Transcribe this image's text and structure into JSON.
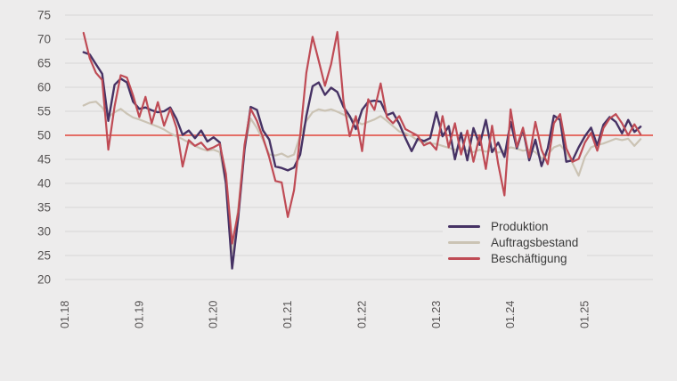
{
  "page": {
    "background_color": "#edecec",
    "gridline_color": "#d8d6d6",
    "axis_label_color": "#565353"
  },
  "chart_data": {
    "type": "line",
    "title": "",
    "xlabel": "",
    "ylabel": "",
    "ylim": [
      20,
      75
    ],
    "grid": true,
    "y_ticks": [
      20,
      25,
      30,
      35,
      40,
      45,
      50,
      55,
      60,
      65,
      70,
      75
    ],
    "x_tick_labels": [
      "01.18",
      "01.19",
      "01.20",
      "01.21",
      "01.22",
      "01.23",
      "01.24",
      "01.25"
    ],
    "x_start_month_index": 3,
    "x_months": [
      "04.18",
      "05.18",
      "06.18",
      "07.18",
      "08.18",
      "09.18",
      "10.18",
      "11.18",
      "12.18",
      "01.19",
      "02.19",
      "03.19",
      "04.19",
      "05.19",
      "06.19",
      "07.19",
      "08.19",
      "09.19",
      "10.19",
      "11.19",
      "12.19",
      "01.20",
      "02.20",
      "03.20",
      "04.20",
      "05.20",
      "06.20",
      "07.20",
      "08.20",
      "09.20",
      "10.20",
      "11.20",
      "12.20",
      "01.21",
      "02.21",
      "03.21",
      "04.21",
      "05.21",
      "06.21",
      "07.21",
      "08.21",
      "09.21",
      "10.21",
      "11.21",
      "12.21",
      "01.22",
      "02.22",
      "03.22",
      "04.22",
      "05.22",
      "06.22",
      "07.22",
      "08.22",
      "09.22",
      "10.22",
      "11.22",
      "12.22",
      "01.23",
      "02.23",
      "03.23",
      "04.23",
      "05.23",
      "06.23",
      "07.23",
      "08.23",
      "09.23",
      "10.23",
      "11.23",
      "12.23",
      "01.24",
      "02.24",
      "03.24",
      "04.24",
      "05.24",
      "06.24",
      "07.24",
      "08.24",
      "09.24",
      "10.24",
      "11.24",
      "12.24",
      "01.25",
      "02.25",
      "03.25",
      "04.25",
      "05.25",
      "06.25",
      "07.25",
      "08.25",
      "09.25",
      "10.25"
    ],
    "baseline": {
      "value": 50,
      "color": "#e2453a"
    },
    "legend_position": "inside-bottom-right",
    "series": [
      {
        "name": "Produktion",
        "color": "#463264",
        "values": [
          67.3,
          66.8,
          64.8,
          62.8,
          53.0,
          60.5,
          61.8,
          61.0,
          57.0,
          55.5,
          55.8,
          55.2,
          54.8,
          55.0,
          55.8,
          53.4,
          50.1,
          51.0,
          49.4,
          51.0,
          48.7,
          49.6,
          48.5,
          40.0,
          22.3,
          33.0,
          47.0,
          55.9,
          55.3,
          51.0,
          49.1,
          43.5,
          43.2,
          42.7,
          43.3,
          46.0,
          54.0,
          60.2,
          61.0,
          58.4,
          59.9,
          59.0,
          55.9,
          54.0,
          51.3,
          55.3,
          57.0,
          57.2,
          57.0,
          54.2,
          54.7,
          52.4,
          49.4,
          46.7,
          49.3,
          48.8,
          49.4,
          54.8,
          49.8,
          51.9,
          45.0,
          50.5,
          44.8,
          51.5,
          48.0,
          53.2,
          46.5,
          48.5,
          45.5,
          52.8,
          47.3,
          51.3,
          44.8,
          49.1,
          43.6,
          47.3,
          54.1,
          53.2,
          44.5,
          44.8,
          47.5,
          49.8,
          51.6,
          47.9,
          52.2,
          53.8,
          52.8,
          50.4,
          53.2,
          50.7,
          51.8
        ]
      },
      {
        "name": "Auftragsbestand",
        "color": "#cbc3b4",
        "values": [
          56.2,
          56.8,
          57.0,
          55.8,
          53.8,
          54.8,
          55.5,
          54.5,
          53.7,
          53.3,
          52.8,
          52.3,
          51.8,
          51.2,
          50.4,
          49.8,
          49.2,
          48.5,
          47.8,
          47.2,
          46.8,
          47.0,
          46.5,
          40.0,
          25.5,
          35.0,
          47.5,
          53.5,
          51.5,
          49.0,
          46.0,
          45.8,
          46.2,
          45.5,
          46.0,
          50.0,
          53.0,
          54.8,
          55.4,
          55.1,
          55.4,
          54.9,
          54.3,
          53.7,
          52.9,
          52.3,
          52.8,
          53.3,
          54.0,
          53.0,
          51.9,
          50.8,
          50.4,
          49.8,
          48.9,
          48.6,
          48.3,
          48.2,
          47.8,
          47.4,
          47.0,
          47.3,
          46.8,
          46.5,
          47.0,
          46.6,
          46.9,
          46.4,
          46.8,
          47.5,
          47.2,
          46.8,
          47.0,
          46.5,
          45.2,
          46.0,
          47.5,
          48.0,
          46.5,
          44.2,
          41.6,
          45.5,
          47.5,
          48.0,
          48.3,
          48.8,
          49.3,
          49.0,
          49.3,
          47.8,
          49.2
        ]
      },
      {
        "name": "Beschäftigung",
        "color": "#bf4b55",
        "values": [
          71.3,
          66.0,
          63.0,
          61.5,
          47.0,
          56.0,
          62.5,
          62.0,
          58.3,
          53.8,
          58.0,
          52.5,
          56.9,
          52.0,
          55.5,
          51.6,
          43.5,
          49.0,
          47.8,
          48.5,
          47.0,
          47.5,
          48.2,
          42.0,
          27.5,
          34.0,
          48.0,
          55.5,
          53.0,
          49.5,
          45.4,
          40.5,
          40.2,
          33.0,
          38.6,
          50.0,
          63.0,
          70.5,
          65.5,
          60.3,
          64.8,
          71.5,
          57.0,
          49.8,
          54.0,
          46.7,
          57.5,
          55.3,
          60.8,
          53.8,
          52.5,
          54.0,
          51.3,
          50.6,
          49.9,
          47.9,
          48.5,
          47.0,
          54.0,
          47.5,
          52.5,
          46.0,
          51.0,
          44.5,
          50.0,
          43.0,
          52.0,
          44.0,
          37.5,
          55.4,
          47.6,
          51.6,
          45.4,
          52.8,
          47.0,
          44.0,
          52.5,
          54.4,
          47.3,
          44.5,
          45.1,
          48.5,
          50.5,
          46.8,
          51.5,
          53.5,
          54.4,
          52.5,
          50.0,
          52.3,
          50.2
        ]
      }
    ]
  }
}
